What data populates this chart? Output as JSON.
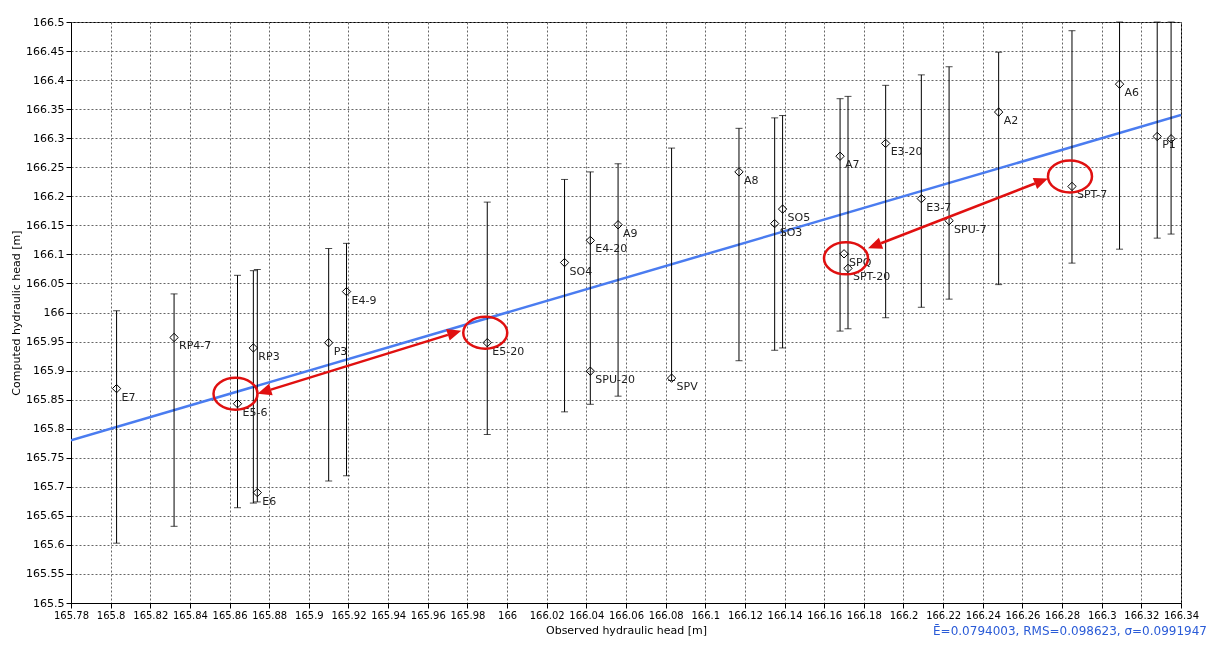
{
  "chart_data": {
    "type": "scatter",
    "xlabel": "Observed hydraulic head [m]",
    "ylabel": "Computed hydraulic head [m]",
    "xlim": [
      165.78,
      166.34
    ],
    "ylim": [
      165.5,
      166.5
    ],
    "xticks": [
      165.78,
      165.8,
      165.82,
      165.84,
      165.86,
      165.88,
      165.9,
      165.92,
      165.94,
      165.96,
      165.98,
      166,
      166.02,
      166.04,
      166.06,
      166.08,
      166.1,
      166.12,
      166.14,
      166.16,
      166.18,
      166.2,
      166.22,
      166.24,
      166.26,
      166.28,
      166.3,
      166.32,
      166.34
    ],
    "yticks": [
      165.5,
      165.55,
      165.6,
      165.65,
      165.7,
      165.75,
      165.8,
      165.85,
      165.9,
      165.95,
      166,
      166.05,
      166.1,
      166.15,
      166.2,
      166.25,
      166.3,
      166.35,
      166.4,
      166.45,
      166.5
    ],
    "grid": true,
    "series": [
      {
        "type": "line",
        "color": "#4a7cf0",
        "x": [
          165.78,
          166.34
        ],
        "values": [
          165.78,
          166.34
        ]
      },
      {
        "color": "#000000",
        "marker": "diamond",
        "x": [
          165.803,
          165.832,
          165.864,
          165.872,
          165.874,
          165.91,
          165.919,
          165.99,
          166.029,
          166.042,
          166.042,
          166.056,
          166.083,
          166.117,
          166.135,
          166.139,
          166.168,
          166.17,
          166.172,
          166.191,
          166.209,
          166.223,
          166.248,
          166.285,
          166.309,
          166.328,
          166.335
        ],
        "values": [
          165.869,
          165.957,
          165.843,
          165.939,
          165.69,
          165.948,
          166.036,
          165.948,
          166.086,
          166.124,
          165.899,
          166.151,
          165.887,
          166.242,
          166.153,
          166.178,
          166.269,
          166.101,
          166.076,
          166.291,
          166.196,
          166.158,
          166.345,
          166.217,
          166.393,
          166.303,
          166.299
        ],
        "errors": [
          [
            165.603,
            166.003
          ],
          [
            165.632,
            166.032
          ],
          [
            165.664,
            166.064
          ],
          [
            165.672,
            166.072
          ],
          [
            165.674,
            166.074
          ],
          [
            165.71,
            166.11
          ],
          [
            165.719,
            166.119
          ],
          [
            165.79,
            166.19
          ],
          [
            165.829,
            166.229
          ],
          [
            165.842,
            166.242
          ],
          null,
          [
            165.856,
            166.256
          ],
          [
            165.883,
            166.283
          ],
          [
            165.917,
            166.317
          ],
          [
            165.935,
            166.335
          ],
          [
            165.939,
            166.339
          ],
          [
            165.968,
            166.368
          ],
          null,
          [
            165.972,
            166.372
          ],
          [
            165.991,
            166.391
          ],
          [
            166.009,
            166.409
          ],
          [
            166.023,
            166.423
          ],
          [
            166.048,
            166.448
          ],
          [
            166.085,
            166.485
          ],
          [
            166.109,
            166.5
          ],
          [
            166.128,
            166.5
          ],
          [
            166.135,
            166.5
          ]
        ]
      }
    ],
    "annotations": [
      {
        "text": "E7",
        "x": 165.803,
        "y": 165.869
      },
      {
        "text": "RP4-7",
        "x": 165.832,
        "y": 165.957
      },
      {
        "text": "E5-6",
        "x": 165.864,
        "y": 165.843
      },
      {
        "text": "RP3",
        "x": 165.872,
        "y": 165.939
      },
      {
        "text": "E6",
        "x": 165.874,
        "y": 165.69
      },
      {
        "text": "P3",
        "x": 165.91,
        "y": 165.948
      },
      {
        "text": "E4-9",
        "x": 165.919,
        "y": 166.036
      },
      {
        "text": "E5-20",
        "x": 165.99,
        "y": 165.948
      },
      {
        "text": "SO4",
        "x": 166.029,
        "y": 166.086
      },
      {
        "text": "E4-20",
        "x": 166.042,
        "y": 166.124
      },
      {
        "text": "SPU-20",
        "x": 166.042,
        "y": 165.899
      },
      {
        "text": "A9",
        "x": 166.056,
        "y": 166.151
      },
      {
        "text": "SPV",
        "x": 166.083,
        "y": 165.887
      },
      {
        "text": "A8",
        "x": 166.117,
        "y": 166.242
      },
      {
        "text": "SO3",
        "x": 166.135,
        "y": 166.153
      },
      {
        "text": "SO5",
        "x": 166.139,
        "y": 166.178
      },
      {
        "text": "A7",
        "x": 166.168,
        "y": 166.269
      },
      {
        "text": "SPQ",
        "x": 166.17,
        "y": 166.101
      },
      {
        "text": "SPT-20",
        "x": 166.172,
        "y": 166.076
      },
      {
        "text": "E3-20",
        "x": 166.191,
        "y": 166.291
      },
      {
        "text": "E3-7",
        "x": 166.209,
        "y": 166.196
      },
      {
        "text": "SPU-7",
        "x": 166.223,
        "y": 166.158
      },
      {
        "text": "A2",
        "x": 166.248,
        "y": 166.345
      },
      {
        "text": "SPT-7",
        "x": 166.285,
        "y": 166.217
      },
      {
        "text": "A6",
        "x": 166.309,
        "y": 166.393
      },
      {
        "text": "P1",
        "x": 166.328,
        "y": 166.303
      },
      "Ē=0.0794003, RMS=0.098623, σ=0.0991947"
    ]
  }
}
